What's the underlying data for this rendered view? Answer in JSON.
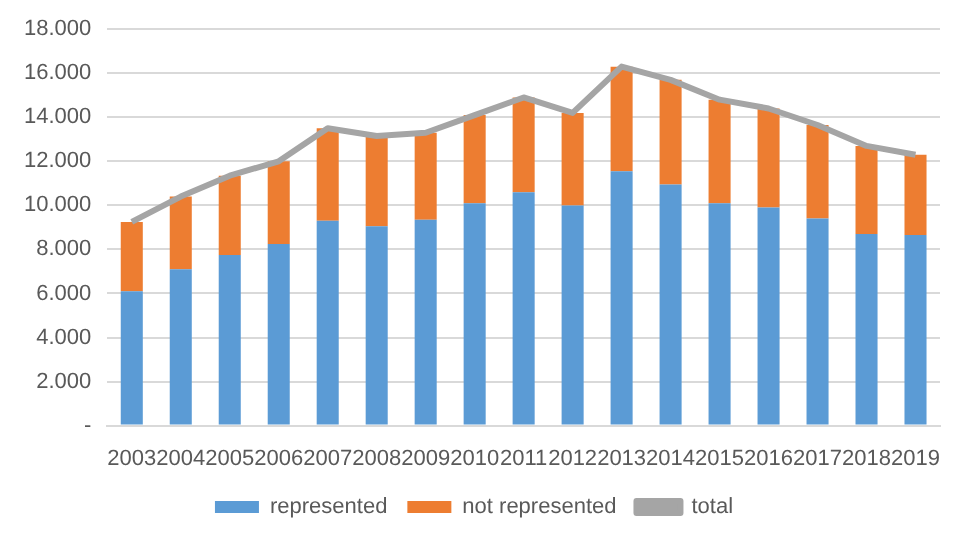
{
  "chart_data": {
    "type": "bar",
    "stacked": true,
    "grid": "y",
    "legend": "bottom",
    "categories": [
      "2003",
      "2004",
      "2005",
      "2006",
      "2007",
      "2008",
      "2009",
      "2010",
      "2011",
      "2012",
      "2013",
      "2014",
      "2015",
      "2016",
      "2017",
      "2018",
      "2019"
    ],
    "series": [
      {
        "name": "represented",
        "color": "#5b9bd5",
        "values": [
          6100,
          7100,
          7750,
          8250,
          9300,
          9050,
          9350,
          10100,
          10600,
          10000,
          11550,
          10950,
          10100,
          9900,
          9400,
          8700,
          8650
        ]
      },
      {
        "name": "not represented",
        "color": "#ed7d31",
        "values": [
          3150,
          3300,
          3600,
          3750,
          4200,
          4100,
          3950,
          4000,
          4300,
          4200,
          4750,
          4750,
          4700,
          4500,
          4250,
          4000,
          3650
        ]
      },
      {
        "name": "total",
        "type": "line",
        "color": "#a5a5a5",
        "marker": "none",
        "values": [
          9250,
          10400,
          11350,
          12000,
          13500,
          13150,
          13300,
          14100,
          14900,
          14200,
          16300,
          15700,
          14800,
          14400,
          13650,
          12700,
          12300
        ]
      }
    ],
    "ylim": [
      0,
      18000
    ],
    "yticks": [
      {
        "value": 0,
        "label": "-"
      },
      {
        "value": 2000,
        "label": "2.000"
      },
      {
        "value": 4000,
        "label": "4.000"
      },
      {
        "value": 6000,
        "label": "6.000"
      },
      {
        "value": 8000,
        "label": "8.000"
      },
      {
        "value": 10000,
        "label": "10.000"
      },
      {
        "value": 12000,
        "label": "12.000"
      },
      {
        "value": 14000,
        "label": "14.000"
      },
      {
        "value": 16000,
        "label": "16.000"
      },
      {
        "value": 18000,
        "label": "18.000"
      }
    ]
  }
}
